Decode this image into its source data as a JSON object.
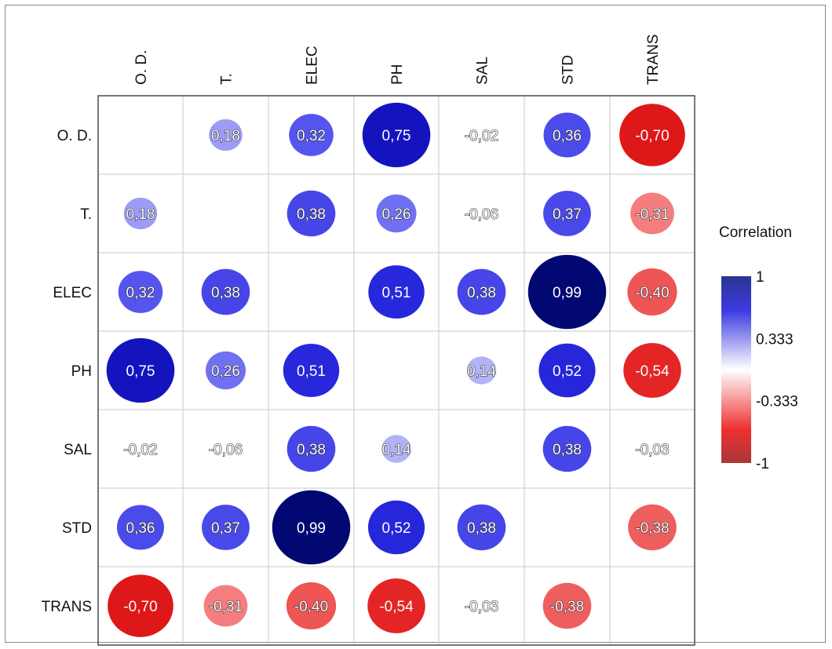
{
  "chart_data": {
    "type": "heatmap",
    "variables": [
      "O. D.",
      "T.",
      "ELEC",
      "PH",
      "SAL",
      "STD",
      "TRANS"
    ],
    "matrix": [
      [
        null,
        0.18,
        0.32,
        0.75,
        -0.02,
        0.36,
        -0.7
      ],
      [
        0.18,
        null,
        0.38,
        0.26,
        -0.06,
        0.37,
        -0.31
      ],
      [
        0.32,
        0.38,
        null,
        0.51,
        0.38,
        0.99,
        -0.4
      ],
      [
        0.75,
        0.26,
        0.51,
        null,
        0.14,
        0.52,
        -0.54
      ],
      [
        -0.02,
        -0.06,
        0.38,
        0.14,
        null,
        0.38,
        -0.03
      ],
      [
        0.36,
        0.37,
        0.99,
        0.52,
        0.38,
        null,
        -0.38
      ],
      [
        -0.7,
        -0.31,
        -0.4,
        -0.54,
        -0.03,
        -0.38,
        null
      ]
    ],
    "legend": {
      "title": "Correlation",
      "ticks": [
        "1",
        "0.333",
        "-0.333",
        "-1"
      ],
      "tick_values": [
        1,
        0.333,
        -0.333,
        -1
      ],
      "placement": "right"
    },
    "colors": {
      "positive_strong": "#000a6e",
      "positive_mid": "#2a2ad8",
      "neutral": "#ffffff",
      "negative_mid": "#e02020",
      "negative_strong": "#b41414"
    }
  }
}
